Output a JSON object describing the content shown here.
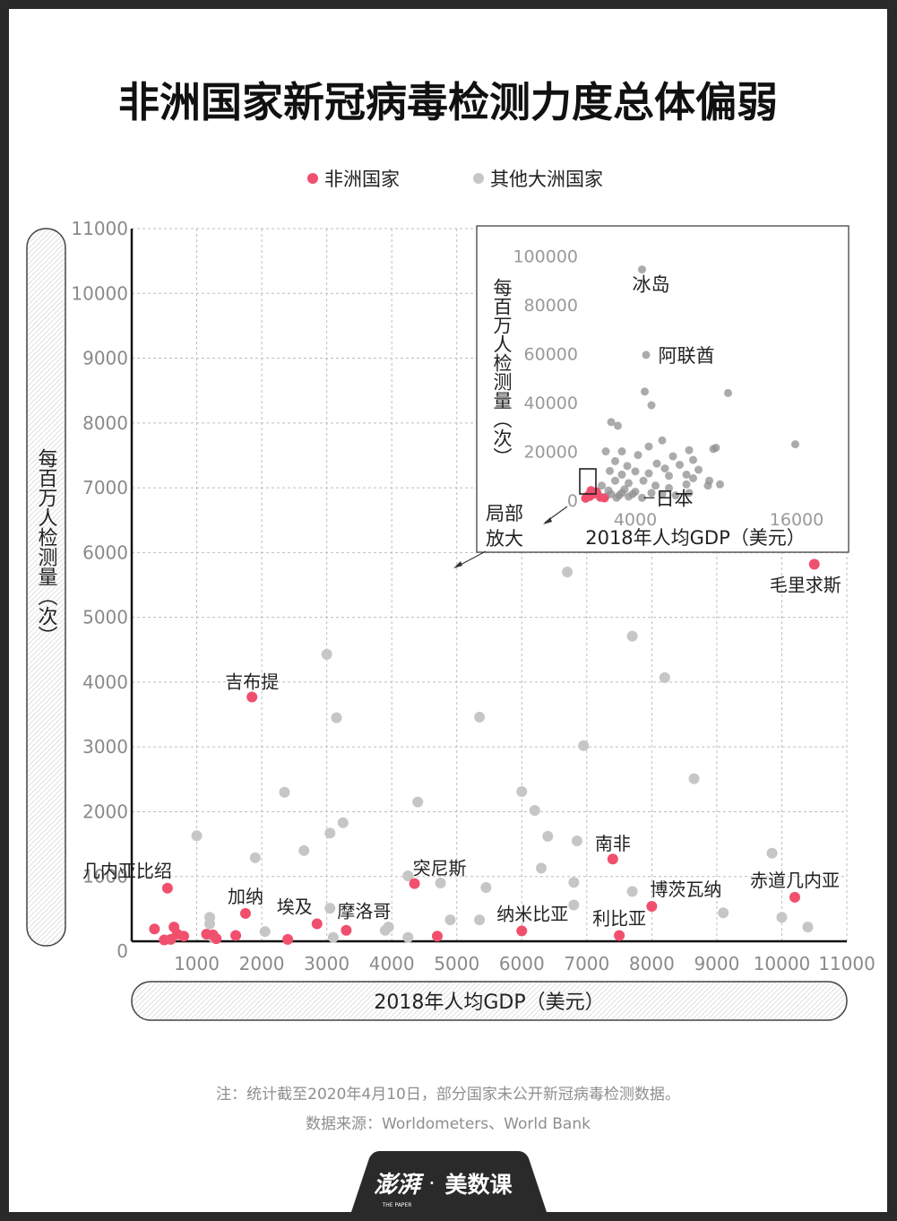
{
  "title": "非洲国家新冠病毒检测力度总体偏弱",
  "legend": [
    {
      "label": "非洲国家",
      "color": "#f0506e"
    },
    {
      "label": "其他大洲国家",
      "color": "#c6c6c6"
    }
  ],
  "footnotes": {
    "note": "注：统计截至2020年4月10日，部分国家未公开新冠病毒检测数据。",
    "source": "数据来源：Worldometers、World Bank"
  },
  "brand": {
    "logo_text": "澎湃",
    "logo_sub": "THE PAPER",
    "dot": "·",
    "name": "美数课"
  },
  "chart_data": [
    {
      "type": "scatter",
      "title": "非洲国家新冠病毒检测力度总体偏弱",
      "xlabel": "2018年人均GDP（美元）",
      "ylabel": "每百万人检测量（次）",
      "xlim": [
        0,
        11000
      ],
      "ylim": [
        0,
        11000
      ],
      "x_ticks": [
        "1000",
        "2000",
        "3000",
        "4000",
        "5000",
        "6000",
        "7000",
        "8000",
        "9000",
        "10000",
        "11000"
      ],
      "y_ticks": [
        "0",
        "1000",
        "2000",
        "3000",
        "4000",
        "5000",
        "6000",
        "7000",
        "8000",
        "9000",
        "10000",
        "11000"
      ],
      "grid": true,
      "legend_position": "top-center",
      "series": [
        {
          "name": "非洲国家",
          "color": "#f0506e",
          "points": [
            {
              "x": 550,
              "y": 820,
              "label": "几内亚比绍"
            },
            {
              "x": 1850,
              "y": 3770,
              "label": "吉布提"
            },
            {
              "x": 1750,
              "y": 430,
              "label": "加纳"
            },
            {
              "x": 2850,
              "y": 270,
              "label": "埃及"
            },
            {
              "x": 3300,
              "y": 170,
              "label": "摩洛哥"
            },
            {
              "x": 4350,
              "y": 890,
              "label": "突尼斯"
            },
            {
              "x": 6000,
              "y": 160,
              "label": "纳米比亚"
            },
            {
              "x": 7400,
              "y": 1270,
              "label": "南非"
            },
            {
              "x": 7500,
              "y": 90,
              "label": "利比亚"
            },
            {
              "x": 8000,
              "y": 540,
              "label": "博茨瓦纳"
            },
            {
              "x": 10200,
              "y": 680,
              "label": "赤道几内亚"
            },
            {
              "x": 10500,
              "y": 5820,
              "label": "毛里求斯"
            },
            {
              "x": 350,
              "y": 190
            },
            {
              "x": 500,
              "y": 20
            },
            {
              "x": 600,
              "y": 30
            },
            {
              "x": 650,
              "y": 220
            },
            {
              "x": 700,
              "y": 110
            },
            {
              "x": 800,
              "y": 80
            },
            {
              "x": 1150,
              "y": 110
            },
            {
              "x": 1250,
              "y": 100
            },
            {
              "x": 1300,
              "y": 40
            },
            {
              "x": 1600,
              "y": 90
            },
            {
              "x": 2400,
              "y": 30
            },
            {
              "x": 4700,
              "y": 80
            }
          ]
        },
        {
          "name": "其他大洲国家",
          "color": "#c6c6c6",
          "points": [
            {
              "x": 1000,
              "y": 1630
            },
            {
              "x": 1200,
              "y": 370
            },
            {
              "x": 1200,
              "y": 270
            },
            {
              "x": 1250,
              "y": 60
            },
            {
              "x": 1900,
              "y": 1290
            },
            {
              "x": 2050,
              "y": 150
            },
            {
              "x": 2350,
              "y": 2300
            },
            {
              "x": 2650,
              "y": 1400
            },
            {
              "x": 3000,
              "y": 4430
            },
            {
              "x": 3050,
              "y": 1670
            },
            {
              "x": 3050,
              "y": 510
            },
            {
              "x": 3100,
              "y": 60
            },
            {
              "x": 3150,
              "y": 3450
            },
            {
              "x": 3250,
              "y": 1830
            },
            {
              "x": 3900,
              "y": 170
            },
            {
              "x": 3950,
              "y": 220
            },
            {
              "x": 4250,
              "y": 60
            },
            {
              "x": 4250,
              "y": 1010
            },
            {
              "x": 4400,
              "y": 2150
            },
            {
              "x": 4750,
              "y": 900
            },
            {
              "x": 4900,
              "y": 330
            },
            {
              "x": 5350,
              "y": 3460
            },
            {
              "x": 5350,
              "y": 330
            },
            {
              "x": 5450,
              "y": 830
            },
            {
              "x": 6000,
              "y": 2310
            },
            {
              "x": 6200,
              "y": 2020
            },
            {
              "x": 6300,
              "y": 1130
            },
            {
              "x": 6400,
              "y": 1620
            },
            {
              "x": 6700,
              "y": 5700
            },
            {
              "x": 6800,
              "y": 910
            },
            {
              "x": 6800,
              "y": 560
            },
            {
              "x": 6850,
              "y": 1550
            },
            {
              "x": 6950,
              "y": 3020
            },
            {
              "x": 7700,
              "y": 4710
            },
            {
              "x": 7700,
              "y": 770
            },
            {
              "x": 8200,
              "y": 4070
            },
            {
              "x": 8650,
              "y": 2510
            },
            {
              "x": 9100,
              "y": 440
            },
            {
              "x": 9850,
              "y": 1360
            },
            {
              "x": 10000,
              "y": 370
            },
            {
              "x": 10400,
              "y": 220
            }
          ]
        }
      ]
    },
    {
      "type": "scatter",
      "xlabel": "2018年人均GDP（美元）",
      "ylabel": "每百万人检测量（次）",
      "xlim": [
        0,
        20000
      ],
      "ylim": [
        0,
        105000
      ],
      "x_ticks": [
        "4000",
        "16000"
      ],
      "y_ticks": [
        "0",
        "20000",
        "40000",
        "60000",
        "80000",
        "100000"
      ],
      "grid": false,
      "zoom_label": "局部放大",
      "series": [
        {
          "name": "其他大洲国家",
          "color": "#8f8f8f",
          "points": [
            {
              "x": 4500,
              "y": 94500,
              "label": "冰岛"
            },
            {
              "x": 4800,
              "y": 59500,
              "label": "阿联酋"
            },
            {
              "x": 4500,
              "y": 1000,
              "label": "日本"
            },
            {
              "x": 4700,
              "y": 44500
            },
            {
              "x": 5200,
              "y": 38900
            },
            {
              "x": 10900,
              "y": 43900
            },
            {
              "x": 2200,
              "y": 32000
            },
            {
              "x": 2700,
              "y": 30500
            },
            {
              "x": 15900,
              "y": 22900
            },
            {
              "x": 10000,
              "y": 21500
            },
            {
              "x": 9800,
              "y": 21000
            },
            {
              "x": 5000,
              "y": 22000
            },
            {
              "x": 6000,
              "y": 24500
            },
            {
              "x": 8000,
              "y": 20500
            },
            {
              "x": 1800,
              "y": 20000
            },
            {
              "x": 3000,
              "y": 20000
            },
            {
              "x": 4200,
              "y": 18500
            },
            {
              "x": 6800,
              "y": 18000
            },
            {
              "x": 8300,
              "y": 16500
            },
            {
              "x": 2500,
              "y": 16000
            },
            {
              "x": 5600,
              "y": 15000
            },
            {
              "x": 7300,
              "y": 14500
            },
            {
              "x": 3400,
              "y": 14000
            },
            {
              "x": 6200,
              "y": 13000
            },
            {
              "x": 8700,
              "y": 12500
            },
            {
              "x": 2100,
              "y": 12000
            },
            {
              "x": 4000,
              "y": 11800
            },
            {
              "x": 5000,
              "y": 11000
            },
            {
              "x": 3000,
              "y": 10500
            },
            {
              "x": 6500,
              "y": 10000
            },
            {
              "x": 7800,
              "y": 10500
            },
            {
              "x": 8300,
              "y": 9000
            },
            {
              "x": 9500,
              "y": 8000
            },
            {
              "x": 2500,
              "y": 8000
            },
            {
              "x": 3500,
              "y": 7000
            },
            {
              "x": 4600,
              "y": 8000
            },
            {
              "x": 5500,
              "y": 6000
            },
            {
              "x": 6500,
              "y": 5000
            },
            {
              "x": 7800,
              "y": 6500
            },
            {
              "x": 9400,
              "y": 6000
            },
            {
              "x": 10300,
              "y": 6500
            },
            {
              "x": 1500,
              "y": 6000
            },
            {
              "x": 2000,
              "y": 4000
            },
            {
              "x": 3200,
              "y": 4500
            },
            {
              "x": 4000,
              "y": 3500
            },
            {
              "x": 5200,
              "y": 3000
            },
            {
              "x": 6000,
              "y": 2500
            },
            {
              "x": 7000,
              "y": 2000
            },
            {
              "x": 8000,
              "y": 3000
            },
            {
              "x": 1200,
              "y": 3000
            },
            {
              "x": 2200,
              "y": 2500
            },
            {
              "x": 2800,
              "y": 2000
            },
            {
              "x": 3500,
              "y": 1500
            },
            {
              "x": 1800,
              "y": 1500
            },
            {
              "x": 2600,
              "y": 1000
            },
            {
              "x": 3000,
              "y": 3000
            },
            {
              "x": 3800,
              "y": 2500
            }
          ]
        },
        {
          "name": "非洲国家",
          "color": "#f0506e",
          "points": [
            {
              "x": 300,
              "y": 800
            },
            {
              "x": 600,
              "y": 1500
            },
            {
              "x": 900,
              "y": 2500
            },
            {
              "x": 1100,
              "y": 3500
            },
            {
              "x": 700,
              "y": 4000
            },
            {
              "x": 500,
              "y": 2000
            },
            {
              "x": 1400,
              "y": 1200
            },
            {
              "x": 1700,
              "y": 900
            }
          ]
        }
      ]
    }
  ]
}
